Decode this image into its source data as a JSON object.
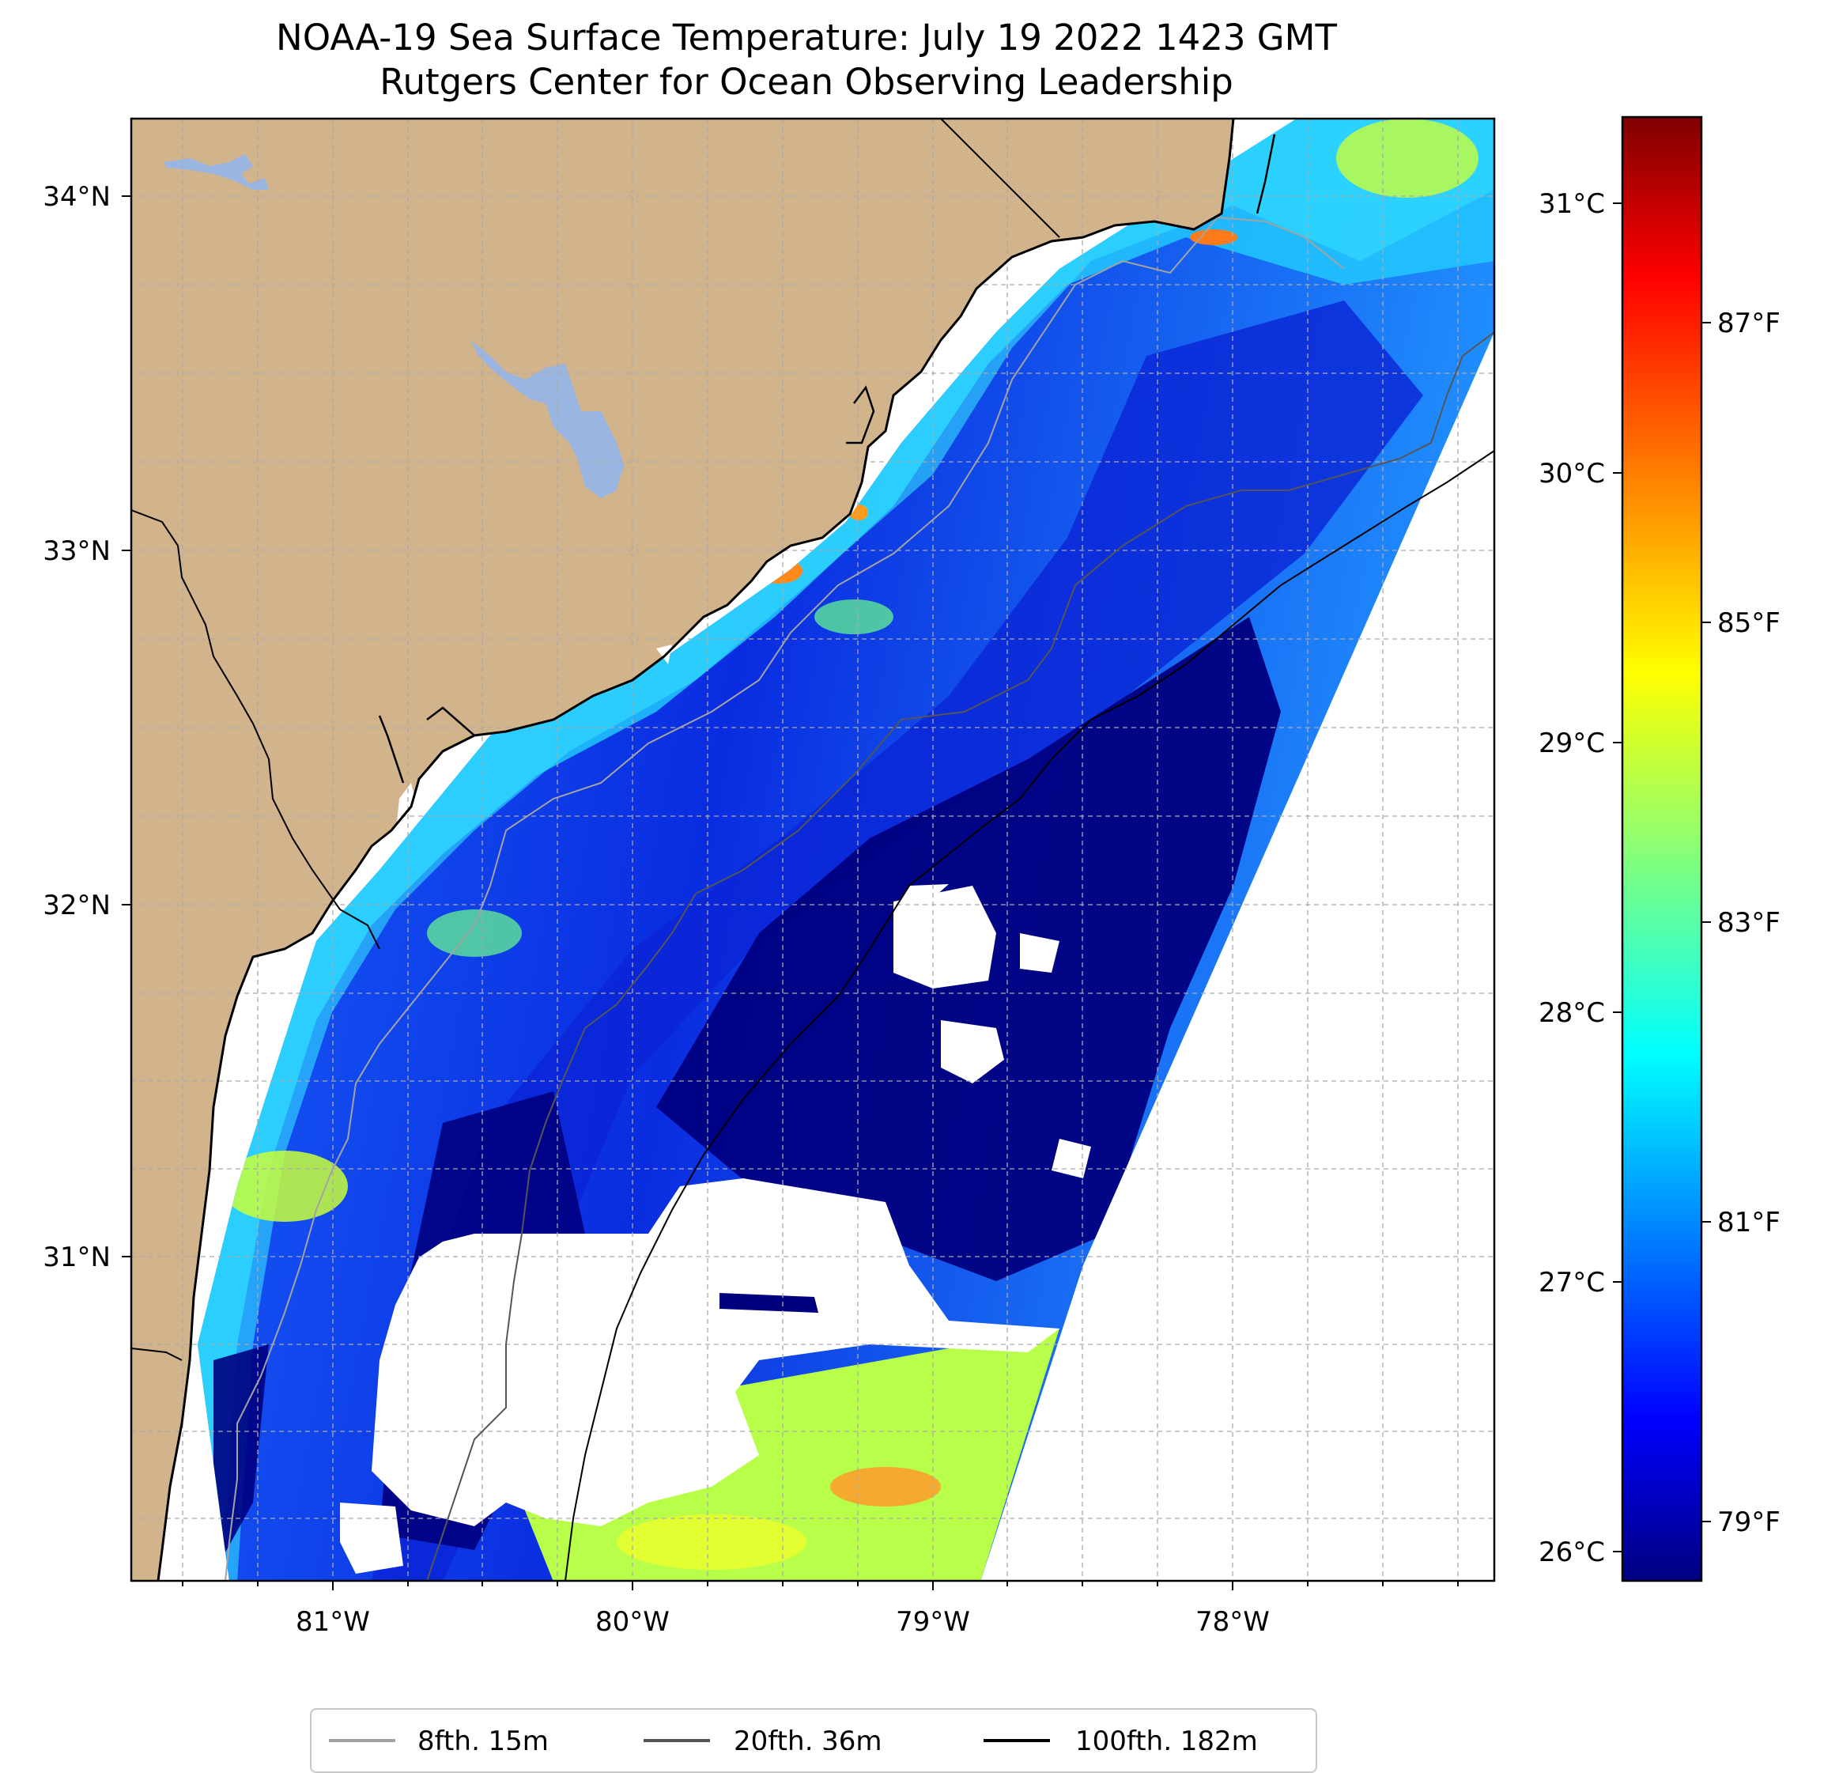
{
  "title": {
    "line1": "NOAA-19 Sea Surface Temperature: July 19 2022 1423 GMT",
    "line2": "Rutgers Center for Ocean Observing Leadership"
  },
  "map": {
    "lon_range": [
      -81.68,
      -77.12
    ],
    "lat_range": [
      30.08,
      34.22
    ],
    "lon_ticks": [
      "81°W",
      "80°W",
      "79°W",
      "78°W"
    ],
    "lat_ticks": [
      "34°N",
      "33°N",
      "32°N",
      "31°N"
    ],
    "colors": {
      "land": "#d2b48c",
      "lakes": "#9ab6e0",
      "coast": "#000000",
      "grid": "#aaaaaa"
    },
    "icons": [
      "coastline",
      "state-border",
      "lake",
      "bathymetry-contour"
    ]
  },
  "colorbar": {
    "celsius_ticks": [
      "31°C",
      "30°C",
      "29°C",
      "28°C",
      "27°C",
      "26°C"
    ],
    "fahrenheit_ticks": [
      "87°F",
      "85°F",
      "83°F",
      "81°F",
      "79°F"
    ],
    "range_c": [
      25.85,
      31.3
    ],
    "colormap": "jet"
  },
  "legend": {
    "entries": [
      {
        "label": "8fth, 15m",
        "color": "#a3a3a3"
      },
      {
        "label": "20fth, 36m",
        "color": "#555555"
      },
      {
        "label": "100fth, 182m",
        "color": "#000000"
      }
    ]
  }
}
